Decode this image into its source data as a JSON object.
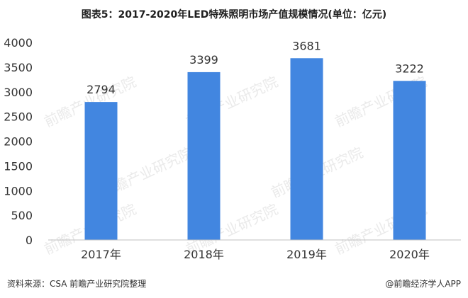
{
  "title": "图表5：2017-2020年LED特殊照明市场产值规模情况(单位：亿元)",
  "source": "资料来源：CSA 前瞻产业研究院整理",
  "brand": "@前瞻经济学人APP",
  "watermark": "前瞻产业研究院",
  "colors": {
    "bar": "#4286E0",
    "axis": "#bfbfbf",
    "text": "#333333",
    "watermark": "#d9d9d9"
  },
  "chart_data": {
    "type": "bar",
    "categories": [
      "2017年",
      "2018年",
      "2019年",
      "2020年"
    ],
    "values": [
      2794,
      3399,
      3681,
      3222
    ],
    "data_labels": [
      "2794",
      "3399",
      "3681",
      "3222"
    ],
    "yticks": [
      "0",
      "500",
      "1000",
      "1500",
      "2000",
      "2500",
      "3000",
      "3500",
      "4000"
    ],
    "ylim": [
      0,
      4000
    ],
    "grid": false,
    "legend": "none"
  }
}
